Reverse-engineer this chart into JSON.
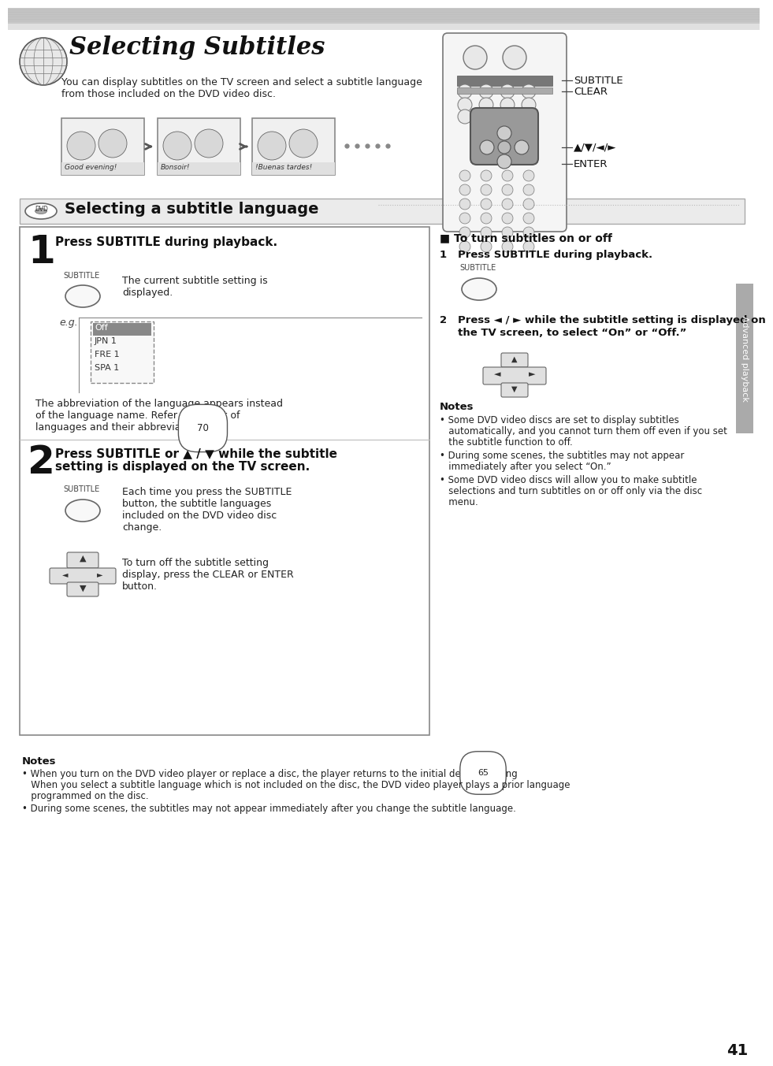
{
  "bg_color": "#ffffff",
  "title_italic": "Selecting Subtitles",
  "subtitle_desc1": "You can display subtitles on the TV screen and select a subtitle language",
  "subtitle_desc2": "from those included on the DVD video disc.",
  "section_title": "Selecting a subtitle language",
  "step1_header": "Press SUBTITLE during playback.",
  "step1_text1": "The current subtitle setting is\ndisplayed.",
  "step1_eg_items": [
    "Off",
    "JPN 1",
    "FRE 1",
    "SPA 1"
  ],
  "step1_footer1": "The abbreviation of the language appears instead",
  "step1_footer2": "of the language name. Refer to the list of",
  "step1_footer3": "languages and their abbreviations.",
  "step1_ref": "70",
  "step2_header1": "Press SUBTITLE or ▲ / ▼ while the subtitle",
  "step2_header2": "setting is displayed on the TV screen.",
  "step2_text1": "Each time you press the SUBTITLE",
  "step2_text2": "button, the subtitle languages",
  "step2_text3": "included on the DVD video disc",
  "step2_text4": "change.",
  "step2_footer1": "To turn off the subtitle setting",
  "step2_footer2": "display, press the CLEAR or ENTER",
  "step2_footer3": "button.",
  "right_box_title": "■ To turn subtitles on or off",
  "right_step1": "1   Press SUBTITLE during playback.",
  "right_step2a": "2   Press ◄ / ► while the subtitle setting is displayed on",
  "right_step2b": "     the TV screen, to select “On” or “Off.”",
  "right_notes_title": "Notes",
  "right_note1a": "• Some DVD video discs are set to display subtitles",
  "right_note1b": "   automatically, and you cannot turn them off even if you set",
  "right_note1c": "   the subtitle function to off.",
  "right_note2a": "• During some scenes, the subtitles may not appear",
  "right_note2b": "   immediately after you select “On.”",
  "right_note3a": "• Some DVD video discs will allow you to make subtitle",
  "right_note3b": "   selections and turn subtitles on or off only via the disc",
  "right_note3c": "   menu.",
  "bottom_notes_title": "Notes",
  "bottom_note1a": "• When you turn on the DVD video player or replace a disc, the player returns to the initial default setting",
  "bottom_note1b": "   When you select a subtitle language which is not included on the disc, the DVD video player plays a prior language",
  "bottom_note1c": "   programmed on the disc.",
  "bottom_note2": "• During some scenes, the subtitles may not appear immediately after you change the subtitle language.",
  "bottom_ref": "65",
  "sidebar_text": "Advanced playback",
  "remote_label0": "SUBTITLE",
  "remote_label1": "CLEAR",
  "remote_label2": "▲/▼/◄/►",
  "remote_label3": "ENTER",
  "page_number": "41",
  "caption1": "Good evening!",
  "caption2": "Bonsoir!",
  "caption3": "!Buenas tardes!"
}
